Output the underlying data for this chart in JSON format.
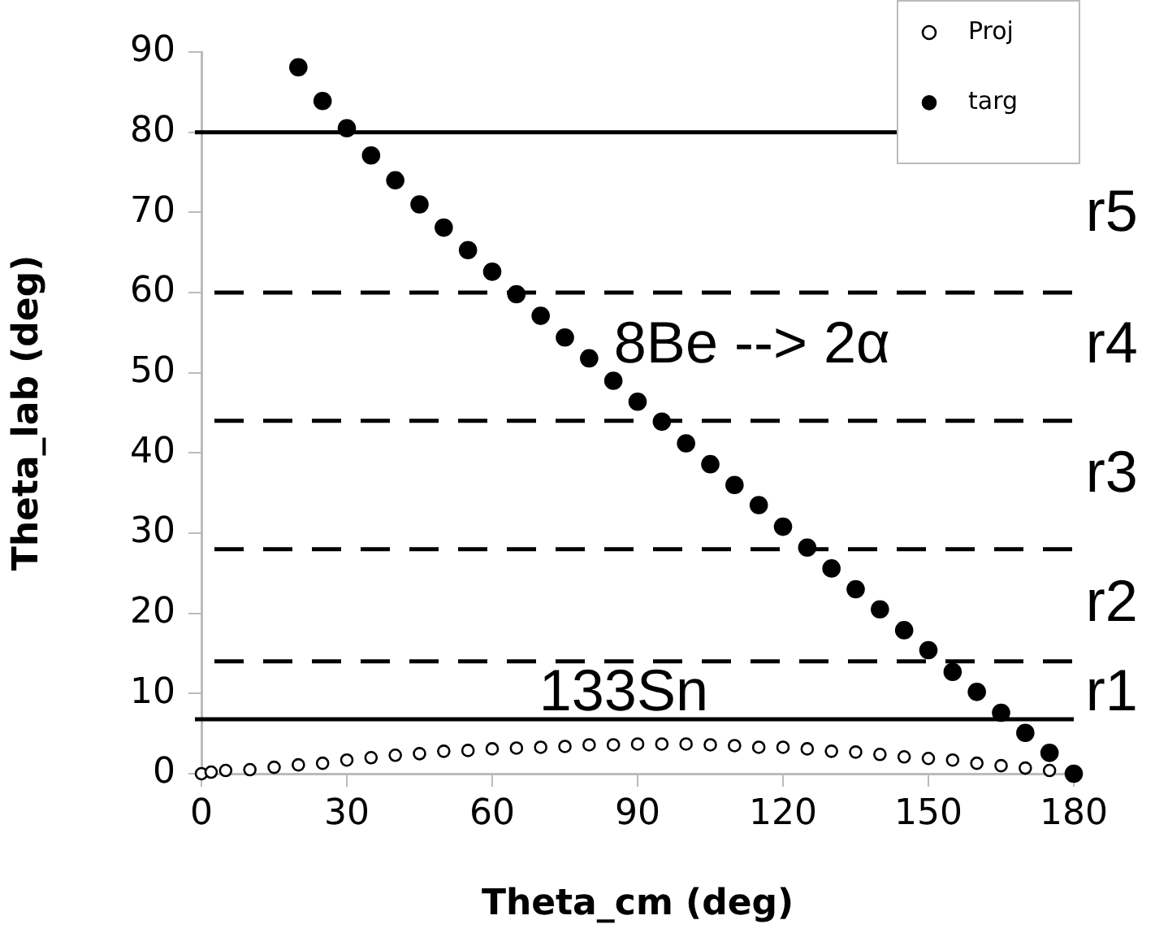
{
  "chart_data": {
    "type": "scatter",
    "xlabel": "Theta_cm (deg)",
    "ylabel": "Theta_lab (deg)",
    "xlim": [
      0,
      180
    ],
    "xticks": [
      0,
      30,
      60,
      90,
      120,
      150,
      180
    ],
    "ylim": [
      0,
      90
    ],
    "yticks": [
      0,
      10,
      20,
      30,
      40,
      50,
      60,
      70,
      80,
      90
    ],
    "grid": false,
    "legend": "top right",
    "series": [
      {
        "name": "Proj",
        "color": "#000000",
        "marker": "open_circle",
        "x": [
          0,
          2,
          5,
          10,
          15,
          20,
          25,
          30,
          35,
          40,
          45,
          50,
          55,
          60,
          65,
          70,
          75,
          80,
          85,
          90,
          95,
          100,
          105,
          110,
          115,
          120,
          125,
          130,
          135,
          140,
          145,
          150,
          155,
          160,
          165,
          170,
          175
        ],
        "values": [
          0,
          0.2,
          0.4,
          0.5,
          0.8,
          1.1,
          1.3,
          1.7,
          2.0,
          2.3,
          2.5,
          2.8,
          2.9,
          3.1,
          3.2,
          3.3,
          3.4,
          3.6,
          3.6,
          3.7,
          3.7,
          3.7,
          3.6,
          3.5,
          3.3,
          3.3,
          3.1,
          2.8,
          2.7,
          2.4,
          2.1,
          1.9,
          1.7,
          1.3,
          1.0,
          0.7,
          0.4
        ]
      },
      {
        "name": "targ",
        "color": "#000000",
        "marker": "circle",
        "x": [
          20,
          25,
          30,
          35,
          40,
          45,
          50,
          55,
          60,
          65,
          70,
          75,
          80,
          85,
          90,
          95,
          100,
          105,
          110,
          115,
          120,
          125,
          130,
          135,
          140,
          145,
          150,
          155,
          160,
          165,
          170,
          175,
          180
        ],
        "values": [
          88.1,
          83.9,
          80.5,
          77.1,
          74.0,
          71.0,
          68.1,
          65.3,
          62.6,
          59.8,
          57.1,
          54.4,
          51.8,
          49.0,
          46.4,
          43.9,
          41.2,
          38.6,
          36.0,
          33.5,
          30.8,
          28.2,
          25.6,
          23.0,
          20.5,
          17.9,
          15.4,
          12.7,
          10.2,
          7.6,
          5.1,
          2.6,
          0
        ]
      }
    ],
    "ref_lines": [
      {
        "axis": "y",
        "value": 80,
        "color": "#000000",
        "line_style": "solid"
      },
      {
        "axis": "y",
        "value": 60,
        "color": "#000000",
        "line_style": "dashed"
      },
      {
        "axis": "y",
        "value": 44,
        "color": "#000000",
        "line_style": "dashed"
      },
      {
        "axis": "y",
        "value": 28,
        "color": "#000000",
        "line_style": "dashed"
      },
      {
        "axis": "y",
        "value": 14,
        "color": "#000000",
        "line_style": "dashed"
      },
      {
        "axis": "y",
        "value": 6.8,
        "color": "#000000",
        "line_style": "solid"
      }
    ],
    "annotations": [
      "8Be --> 2α",
      "133Sn",
      "r5",
      "r4",
      "r3",
      "r2",
      "r1"
    ]
  }
}
